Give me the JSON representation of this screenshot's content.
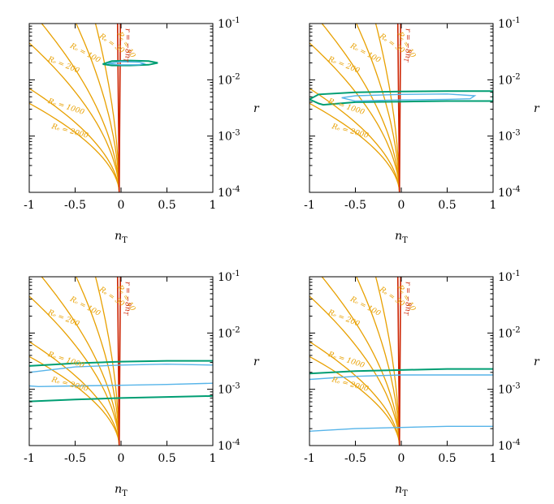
{
  "colors": {
    "contour": "#e8a000",
    "consistency": "#cc2200",
    "outer": "#009e73",
    "inner": "#56b4e9",
    "frame": "#000000"
  },
  "axes": {
    "x_ticks": [
      "-1",
      "-0.5",
      "0",
      "0.5",
      "1"
    ],
    "y_ticks": [
      {
        "base": "10",
        "exp": "-1"
      },
      {
        "base": "10",
        "exp": "-2"
      },
      {
        "base": "10",
        "exp": "-3"
      },
      {
        "base": "10",
        "exp": "-4"
      }
    ],
    "x_label": "n",
    "x_label_sub": "T",
    "y_label": "r"
  },
  "contour_labels": [
    {
      "text": "Rₑ = 10",
      "value": 10
    },
    {
      "text": "Rₑ = 30",
      "value": 30
    },
    {
      "text": "Rₑ = 100",
      "value": 100
    },
    {
      "text": "Rₑ = 200",
      "value": 200
    },
    {
      "text": "Rₑ = 1000",
      "value": 1000
    },
    {
      "text": "Rₑ = 2000",
      "value": 2000
    }
  ],
  "consistency_label": "r = −8n",
  "consistency_label_sub": "T",
  "chart_data": [
    {
      "type": "line",
      "xlim": [
        -1,
        1
      ],
      "ylim": [
        0.0001,
        0.1
      ],
      "yscale": "log",
      "series": [
        {
          "role": "outer",
          "x": [
            -0.2,
            -0.1,
            0.1,
            0.3,
            0.4,
            0.3,
            0.1,
            -0.1,
            -0.2
          ],
          "y": [
            0.019,
            0.0215,
            0.022,
            0.0215,
            0.02,
            0.0185,
            0.018,
            0.018,
            0.019
          ]
        },
        {
          "role": "inner",
          "x": [
            -0.15,
            0.0,
            0.2,
            0.25,
            0.2,
            0.0,
            -0.15
          ],
          "y": [
            0.0195,
            0.021,
            0.0205,
            0.0195,
            0.0185,
            0.0185,
            0.0195
          ]
        }
      ]
    },
    {
      "type": "line",
      "xlim": [
        -1,
        1
      ],
      "ylim": [
        0.0001,
        0.1
      ],
      "yscale": "log",
      "series": [
        {
          "role": "outer",
          "x": [
            -1.0,
            -0.9,
            -0.5,
            0.0,
            0.5,
            1.0,
            1.0,
            0.5,
            0.0,
            -0.5,
            -0.85,
            -0.9,
            -1.0
          ],
          "y": [
            0.0045,
            0.0055,
            0.006,
            0.0062,
            0.0063,
            0.0063,
            0.0042,
            0.0042,
            0.0041,
            0.004,
            0.0036,
            0.0038,
            0.0045
          ]
        },
        {
          "role": "inner",
          "x": [
            -0.65,
            -0.5,
            0.0,
            0.5,
            0.8,
            0.75,
            0.5,
            0.0,
            -0.5,
            -0.65
          ],
          "y": [
            0.0048,
            0.0052,
            0.0055,
            0.0056,
            0.0052,
            0.0046,
            0.0045,
            0.0044,
            0.0042,
            0.0048
          ]
        }
      ]
    },
    {
      "type": "line",
      "xlim": [
        -1,
        1
      ],
      "ylim": [
        0.0001,
        0.1
      ],
      "yscale": "log",
      "series": [
        {
          "role": "outer",
          "x": [
            -1.0,
            -0.5,
            0.0,
            0.5,
            1.0
          ],
          "y": [
            0.0026,
            0.0029,
            0.0031,
            0.0032,
            0.0032
          ]
        },
        {
          "role": "inner",
          "x": [
            -1.0,
            -0.5,
            0.0,
            0.5,
            1.0
          ],
          "y": [
            0.002,
            0.0025,
            0.0027,
            0.0028,
            0.0027
          ]
        },
        {
          "role": "inner",
          "x": [
            -1.0,
            -0.9,
            -0.5,
            0.0,
            0.5,
            1.0
          ],
          "y": [
            0.00115,
            0.00112,
            0.00115,
            0.00118,
            0.00122,
            0.00128
          ]
        },
        {
          "role": "outer",
          "x": [
            -1.0,
            -0.5,
            0.0,
            0.5,
            1.0
          ],
          "y": [
            0.00061,
            0.00066,
            0.0007,
            0.00073,
            0.00076
          ]
        }
      ]
    },
    {
      "type": "line",
      "xlim": [
        -1,
        1
      ],
      "ylim": [
        0.0001,
        0.1
      ],
      "yscale": "log",
      "series": [
        {
          "role": "outer",
          "x": [
            -1.0,
            -0.5,
            0.0,
            0.5,
            1.0
          ],
          "y": [
            0.0019,
            0.0021,
            0.0022,
            0.0023,
            0.0023
          ]
        },
        {
          "role": "inner",
          "x": [
            -1.0,
            -0.5,
            0.0,
            0.5,
            1.0
          ],
          "y": [
            0.0015,
            0.0017,
            0.0018,
            0.0018,
            0.0018
          ]
        },
        {
          "role": "inner",
          "x": [
            -1.0,
            -0.5,
            0.0,
            0.5,
            1.0
          ],
          "y": [
            0.00018,
            0.0002,
            0.00021,
            0.00022,
            0.00022
          ]
        }
      ]
    }
  ]
}
